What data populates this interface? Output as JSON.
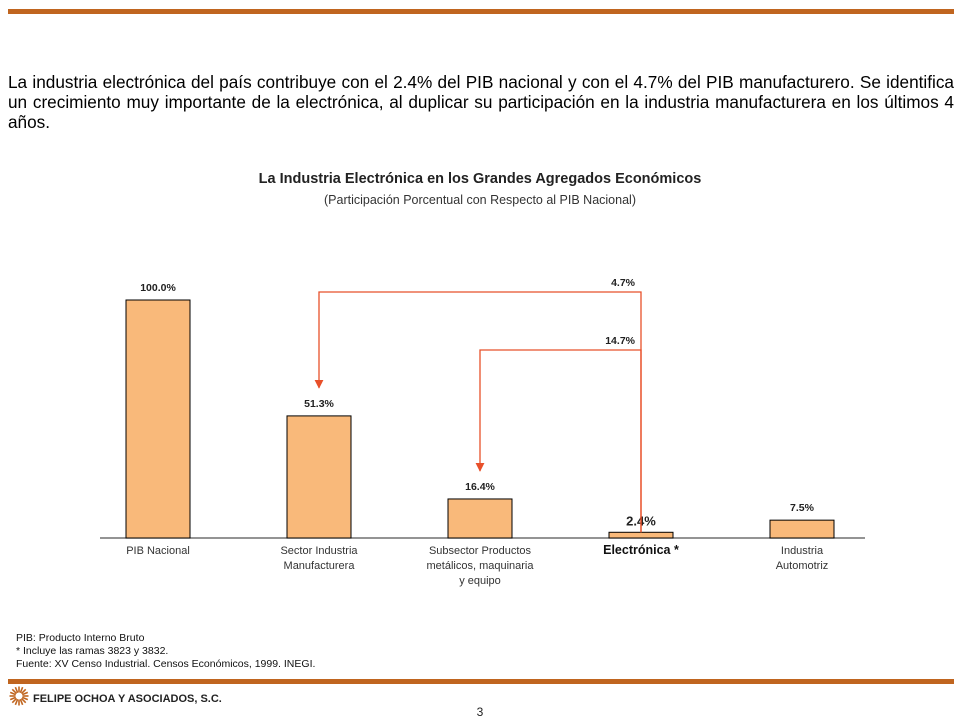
{
  "intro_text": "La industria electrónica del país contribuye con el 2.4% del PIB nacional y con el 4.7% del PIB manufacturero. Se identifica un crecimiento muy importante de la electrónica, al duplicar su participación en la industria manufacturera en los últimos 4 años.",
  "chart_data": {
    "type": "bar",
    "title": "La Industria Electrónica en los Grandes Agregados Económicos",
    "subtitle": "(Participación Porcentual con Respecto al PIB Nacional)",
    "unit": "%",
    "ylim": [
      0,
      100
    ],
    "grid": false,
    "categories": [
      "PIB Nacional",
      "Sector Industria Manufacturera",
      "Subsector Productos metálicos, maquinaria y equipo",
      "Electrónica *",
      "Industria Automotriz"
    ],
    "category_lines": [
      [
        "PIB Nacional"
      ],
      [
        "Sector Industria",
        "Manufacturera"
      ],
      [
        "Subsector Productos",
        "metálicos, maquinaria",
        "y equipo"
      ],
      [
        "Electrónica *"
      ],
      [
        "Industria",
        "Automotriz"
      ]
    ],
    "values": [
      100.0,
      51.3,
      16.4,
      2.4,
      7.5
    ],
    "data_labels": [
      "100.0%",
      "51.3%",
      "16.4%",
      "2.4%",
      "7.5%"
    ],
    "highlight_index": 3,
    "annotations": [
      {
        "from": "Electrónica *",
        "to": "Sector Industria Manufacturera",
        "label": "4.7%"
      },
      {
        "from": "Electrónica *",
        "to": "Subsector Productos metálicos, maquinaria y equipo",
        "label": "14.7%"
      }
    ],
    "colors": {
      "bar": "#f9b97a",
      "bar_edge": "#000000",
      "arrow": "#e8502a",
      "axis": "#555555"
    }
  },
  "notes": [
    "PIB: Producto Interno Bruto",
    "* Incluye las ramas 3823 y 3832.",
    "Fuente: XV Censo Industrial. Censos Económicos, 1999. INEGI."
  ],
  "company": "FELIPE OCHOA Y ASOCIADOS, S.C.",
  "page_number": "3",
  "colors": {
    "rule": "#c0651f",
    "logo": "#c0651f"
  },
  "logo_icon": "sunburst-logo-icon"
}
